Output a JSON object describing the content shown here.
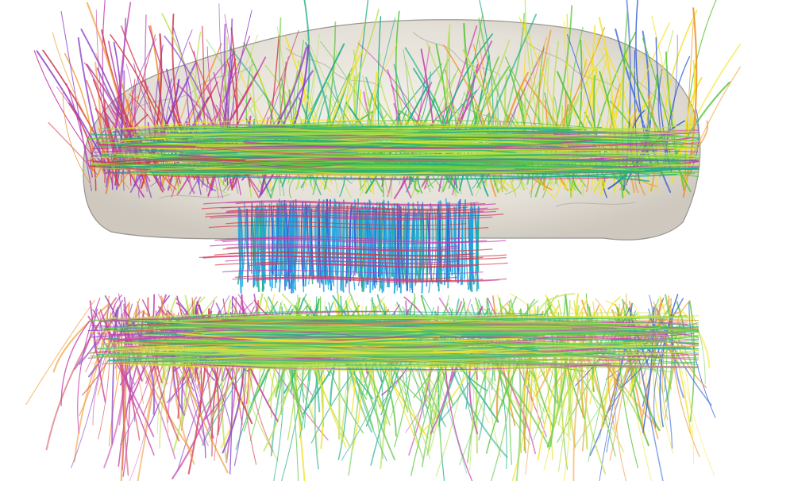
{
  "image": {
    "subject": "brain-tractography-fibers",
    "background_color": "#ffffff",
    "brain_surface_color": "#e8e4dc",
    "brain_outline_color": "#8c8a84",
    "fiber_palette": {
      "cyan": "#19a7e0",
      "blue": "#2c5bd6",
      "green": "#5cc63c",
      "lime": "#b8e04a",
      "yellow": "#f2e21c",
      "orange": "#f0962a",
      "red": "#d23a4a",
      "magenta": "#c43aa8",
      "purple": "#8a3fc8",
      "teal": "#1fae88"
    }
  }
}
